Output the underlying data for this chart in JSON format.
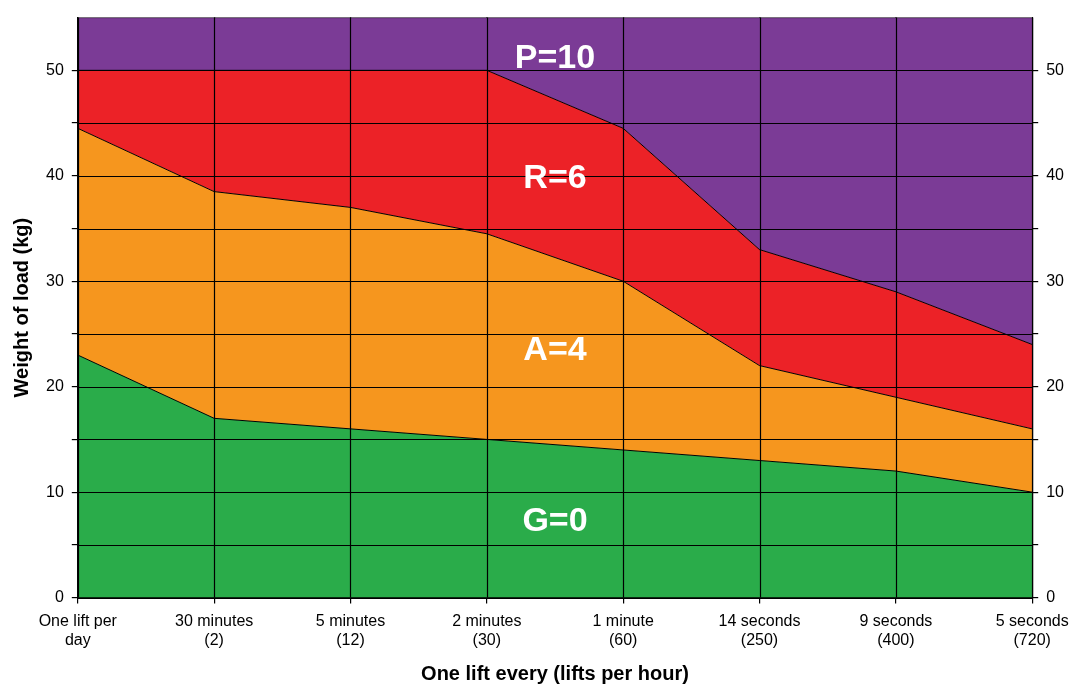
{
  "chart_data": {
    "type": "area",
    "stacked": true,
    "xlabel": "One lift every (lifts per hour)",
    "ylabel": "Weight of load (kg)",
    "categories": [
      "One lift per\nday",
      "30 minutes\n(2)",
      "5 minutes\n(12)",
      "2 minutes\n(30)",
      "1 minute\n(60)",
      "14 seconds\n(250)",
      "9 seconds\n(400)",
      "5 seconds\n(720)"
    ],
    "series": [
      {
        "name": "G=0",
        "color": "#2aac4a",
        "values": [
          23,
          17,
          16,
          15,
          14,
          13,
          12,
          10
        ]
      },
      {
        "name": "A=4",
        "color": "#f6961e",
        "values": [
          21.5,
          21.5,
          21,
          19.5,
          16,
          9,
          7,
          6
        ]
      },
      {
        "name": "R=6",
        "color": "#ec2227",
        "values": [
          5.5,
          11.5,
          13,
          15.5,
          14.5,
          11,
          10,
          8
        ]
      },
      {
        "name": "P=10",
        "color": "#7b3b96",
        "values": [
          5,
          5,
          5,
          5,
          10.5,
          22,
          26,
          31
        ]
      }
    ],
    "ylim": [
      0,
      55
    ],
    "yticks": [
      0,
      {
        "value": 5,
        "label": null
      },
      10,
      {
        "value": 15,
        "label": null
      },
      20,
      {
        "value": 25,
        "label": null
      },
      30,
      {
        "value": 35,
        "label": null
      },
      40,
      {
        "value": 45,
        "label": null
      },
      50
    ],
    "y2lim": [
      0,
      55
    ],
    "y2ticks": [
      0,
      {
        "value": 5,
        "label": null
      },
      10,
      {
        "value": 15,
        "label": null
      },
      20,
      {
        "value": 25,
        "label": null
      },
      30,
      {
        "value": 35,
        "label": null
      },
      40,
      {
        "value": 45,
        "label": null
      },
      50
    ],
    "grid": true,
    "legend": false
  }
}
